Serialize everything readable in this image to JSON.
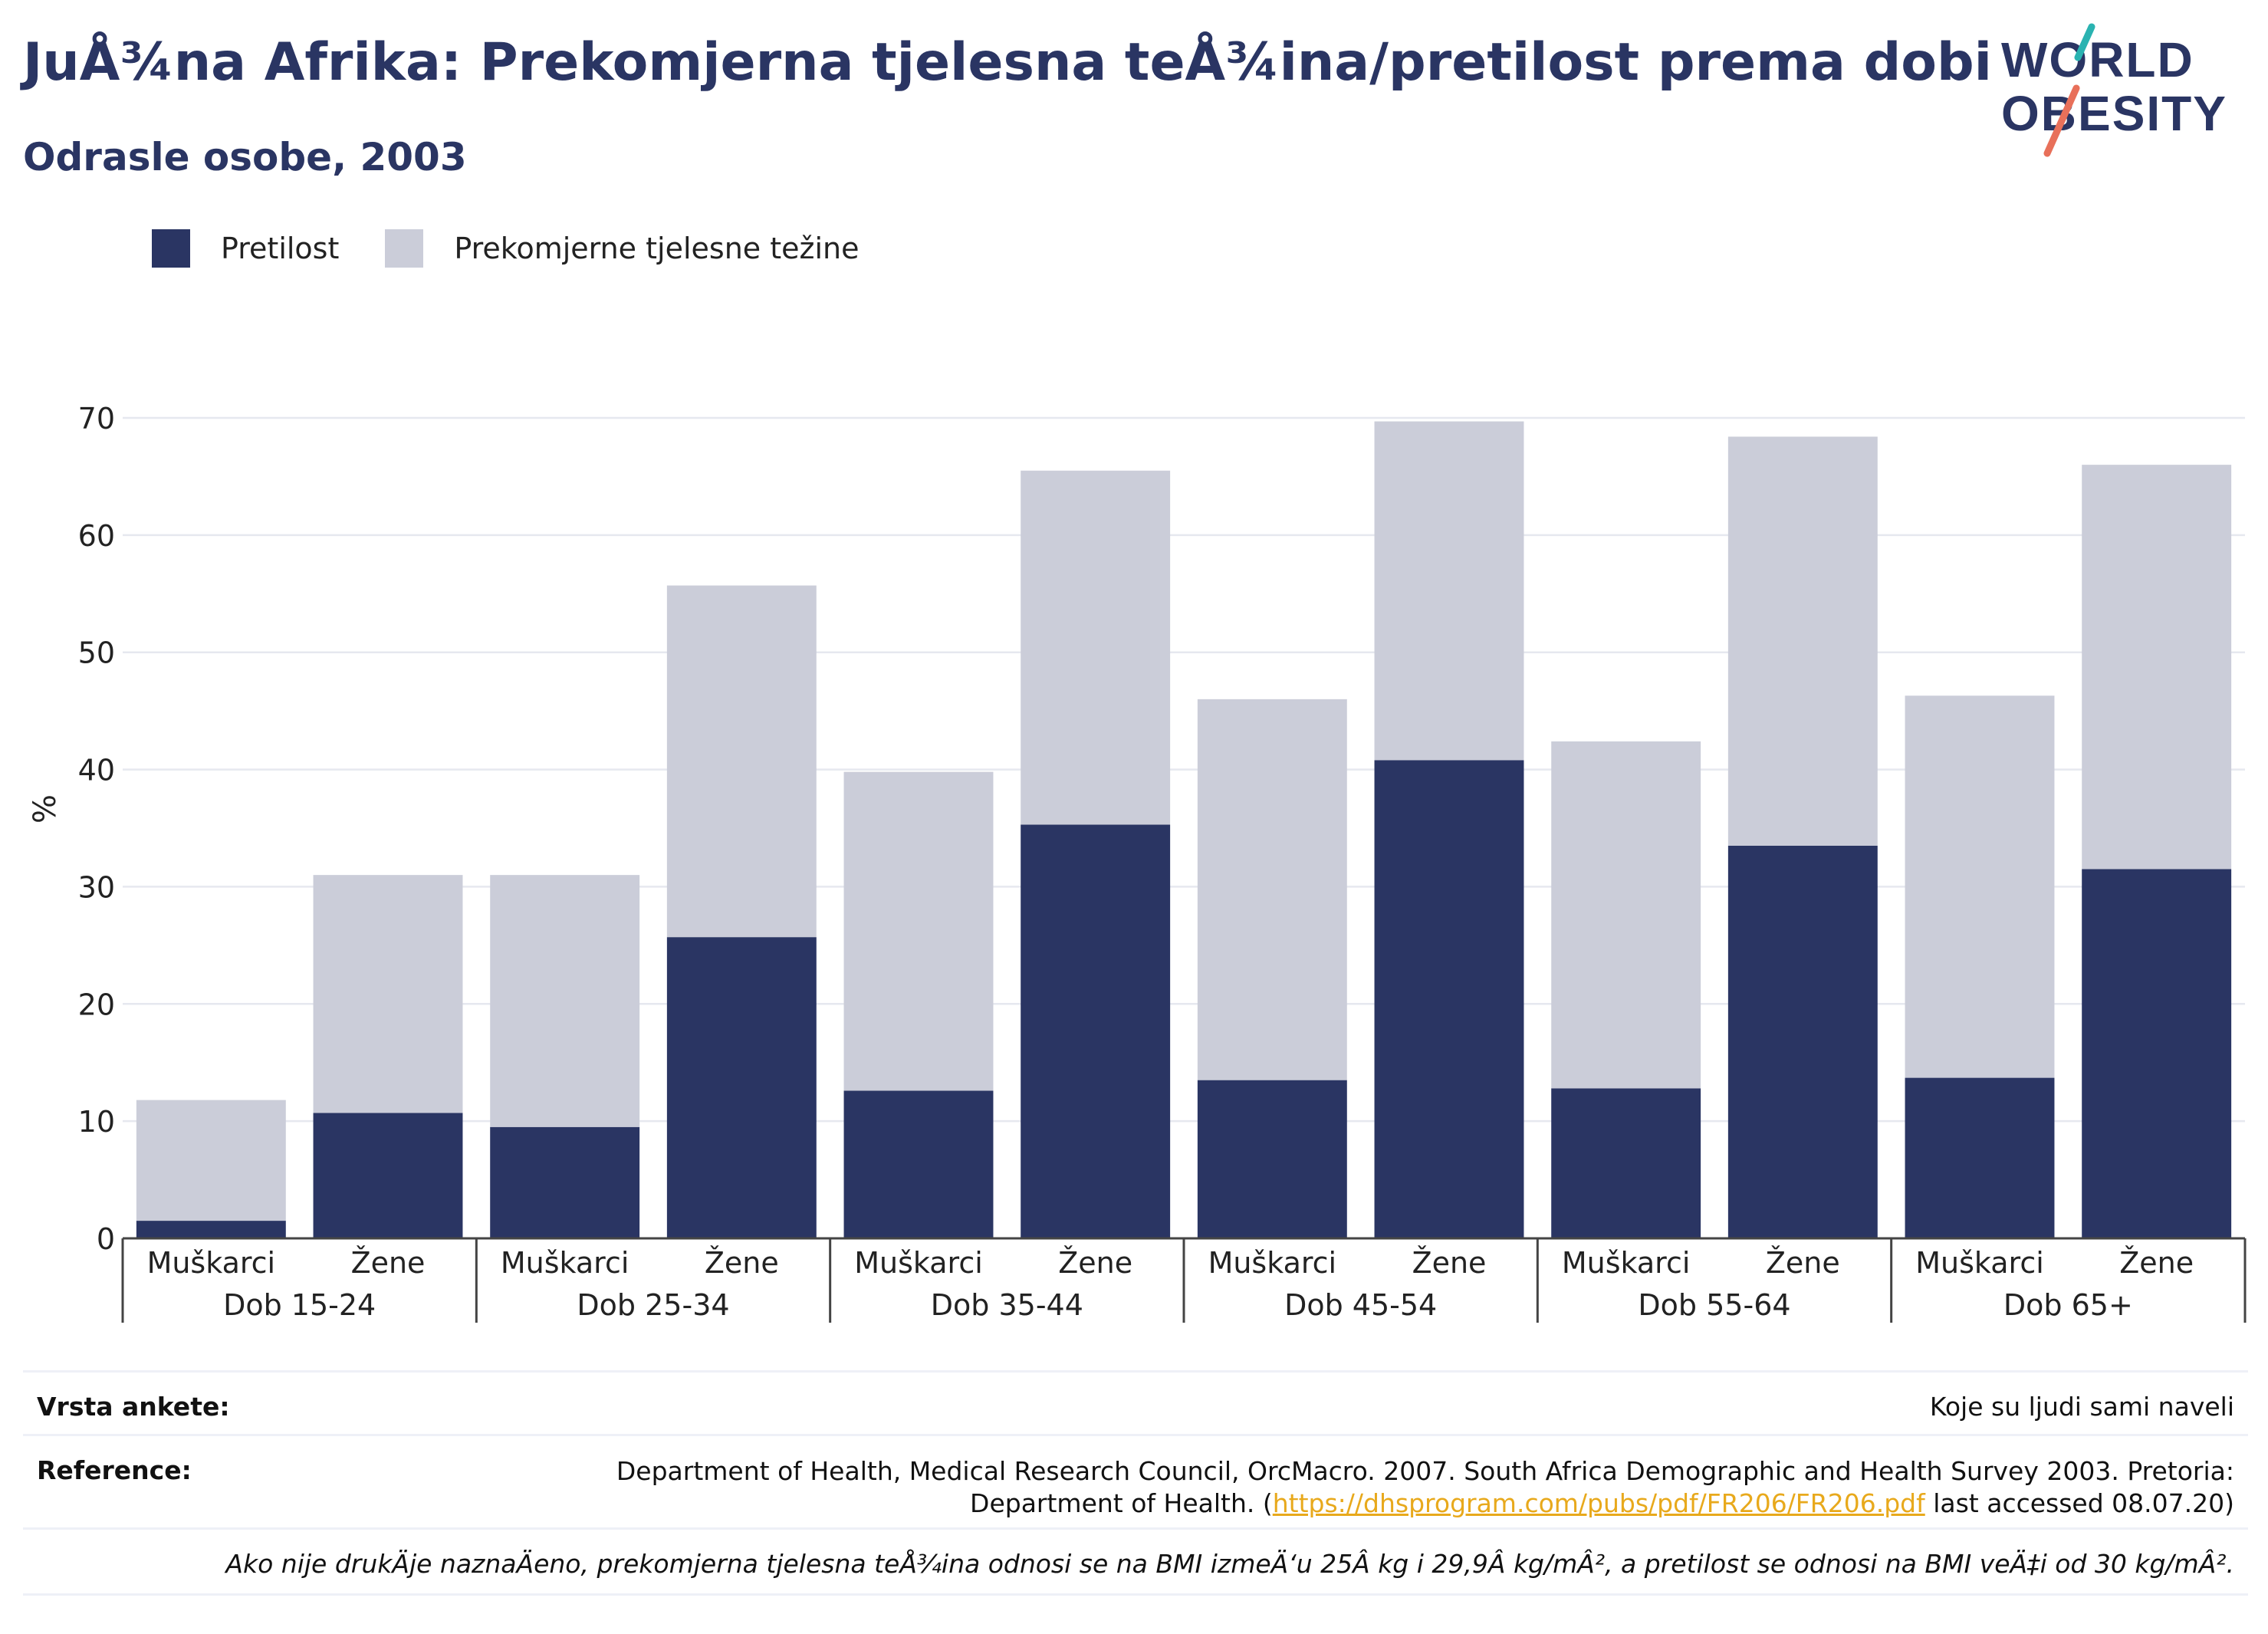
{
  "title": "JuÅ¾na Afrika: Prekomjerna tjelesna teÅ¾ina/pretilost prema dobi",
  "subtitle": "Odrasle osobe, 2003",
  "logo": {
    "line1": "WORLD",
    "line2": "OBESITY",
    "accent_teal": "#2ab3b1",
    "accent_coral": "#e8705a"
  },
  "colors": {
    "obesity": "#2a3563",
    "overweight": "#cbcdd9",
    "text": "#2a3563"
  },
  "legend": [
    {
      "label": "Pretilost",
      "color": "#2a3563"
    },
    {
      "label": "Prekomjerne tjelesne težine",
      "color": "#cbcdd9"
    }
  ],
  "chart_data": {
    "type": "bar",
    "stacked": true,
    "ylabel": "%",
    "ylim": [
      0,
      70
    ],
    "yticks": [
      0,
      10,
      20,
      30,
      40,
      50,
      60,
      70
    ],
    "grid": true,
    "legend_position": "top-left",
    "groups": [
      "Dob 15-24",
      "Dob 25-34",
      "Dob 35-44",
      "Dob 45-54",
      "Dob 55-64",
      "Dob 65+"
    ],
    "subcategories": [
      "Muškarci",
      "Žene"
    ],
    "series": [
      {
        "name": "Pretilost",
        "values": [
          1.5,
          10.7,
          9.5,
          25.7,
          12.6,
          35.3,
          13.5,
          40.8,
          12.8,
          33.5,
          13.7,
          31.5
        ]
      },
      {
        "name": "Prekomjerne tjelesne težine",
        "values": [
          10.3,
          20.3,
          21.5,
          30.0,
          27.2,
          30.2,
          32.5,
          28.9,
          29.6,
          34.9,
          32.6,
          34.5
        ]
      }
    ]
  },
  "footer": {
    "survey_label": "Vrsta ankete:",
    "survey_value": "Koje su ljudi sami naveli",
    "ref_label": "Reference:",
    "ref_line1": "Department of Health, Medical Research Council, OrcMacro. 2007. South Africa Demographic and Health Survey 2003. Pretoria:",
    "ref_line2_pre": "Department of Health. (",
    "ref_link": "https://dhsprogram.com/pubs/pdf/FR206/FR206.pdf",
    "ref_line2_post": " last accessed 08.07.20)",
    "note": "Ako nije drukÄ\u001fje naznaÄ\u001feno, prekomjerna tjelesna teÅ¾ina odnosi se na BMI izmeÄ‘u 25Â kg i 29,9Â kg/mÂ², a pretilost se odnosi na BMI veÄ‡i od 30 kg/mÂ²."
  }
}
